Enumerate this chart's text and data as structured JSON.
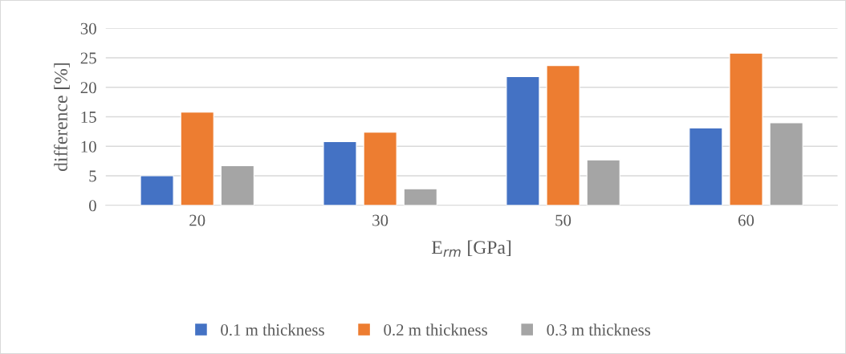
{
  "chart_data": {
    "type": "bar",
    "xlabel": "E$_{rm}$ [GPa]",
    "ylabel": "difference [%]",
    "categories": [
      "20",
      "30",
      "50",
      "60"
    ],
    "series": [
      {
        "name": "0.1 m thickness",
        "color": "#4472c4",
        "values": [
          5.0,
          10.8,
          21.8,
          13.1
        ]
      },
      {
        "name": "0.2 m thickness",
        "color": "#ed7d31",
        "values": [
          15.8,
          12.4,
          23.7,
          25.8
        ]
      },
      {
        "name": "0.3 m thickness",
        "color": "#a5a5a5",
        "values": [
          6.7,
          2.8,
          7.7,
          14.0
        ]
      }
    ],
    "ylim": [
      0,
      30
    ],
    "yticks": [
      0,
      5,
      10,
      15,
      20,
      25,
      30
    ],
    "grid": "y",
    "legend": "bottom"
  }
}
